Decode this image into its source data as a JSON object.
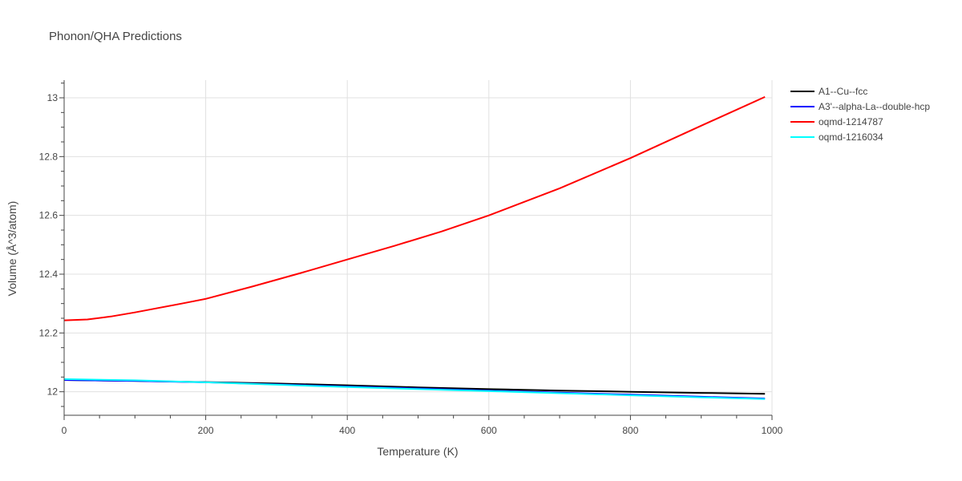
{
  "chart_data": {
    "type": "line",
    "title": "Phonon/QHA Predictions",
    "xlabel": "Temperature (K)",
    "ylabel": "Volume (Å^3/atom)",
    "xlim": [
      0,
      1000
    ],
    "ylim": [
      11.92,
      13.06
    ],
    "x_ticks": [
      0,
      200,
      400,
      600,
      800,
      1000
    ],
    "x_tick_labels": [
      "0",
      "200",
      "400",
      "600",
      "800",
      "1000"
    ],
    "y_ticks": [
      12.0,
      12.2,
      12.4,
      12.6,
      12.8,
      13.0
    ],
    "y_tick_labels": [
      "12",
      "12.2",
      "12.4",
      "12.6",
      "12.8",
      "13"
    ],
    "grid": true,
    "legend_position": "top-right-outside",
    "series": [
      {
        "name": "A1--Cu--fcc",
        "color": "#000000",
        "x": [
          0,
          100,
          200,
          300,
          400,
          500,
          600,
          700,
          800,
          900,
          990
        ],
        "y": [
          12.04,
          12.037,
          12.033,
          12.028,
          12.022,
          12.015,
          12.009,
          12.004,
          12.0,
          11.996,
          11.993
        ]
      },
      {
        "name": "A3'--alpha-La--double-hcp",
        "color": "#0000ff",
        "x": [
          0,
          100,
          200,
          300,
          400,
          500,
          600,
          700,
          800,
          900,
          990
        ],
        "y": [
          12.04,
          12.037,
          12.032,
          12.025,
          12.018,
          12.011,
          12.004,
          11.997,
          11.99,
          11.983,
          11.977
        ]
      },
      {
        "name": "oqmd-1214787",
        "color": "#ff0000",
        "x": [
          0,
          33,
          66,
          100,
          133,
          166,
          200,
          266,
          333,
          400,
          466,
          533,
          600,
          700,
          800,
          900,
          990
        ],
        "y": [
          12.243,
          12.246,
          12.256,
          12.27,
          12.285,
          12.3,
          12.316,
          12.358,
          12.403,
          12.45,
          12.496,
          12.545,
          12.6,
          12.692,
          12.795,
          12.905,
          13.003
        ]
      },
      {
        "name": "oqmd-1216034",
        "color": "#00ffff",
        "x": [
          0,
          100,
          200,
          300,
          400,
          500,
          600,
          700,
          800,
          900,
          990
        ],
        "y": [
          12.043,
          12.039,
          12.032,
          12.024,
          12.016,
          12.009,
          12.002,
          11.995,
          11.988,
          11.981,
          11.975
        ]
      }
    ]
  }
}
